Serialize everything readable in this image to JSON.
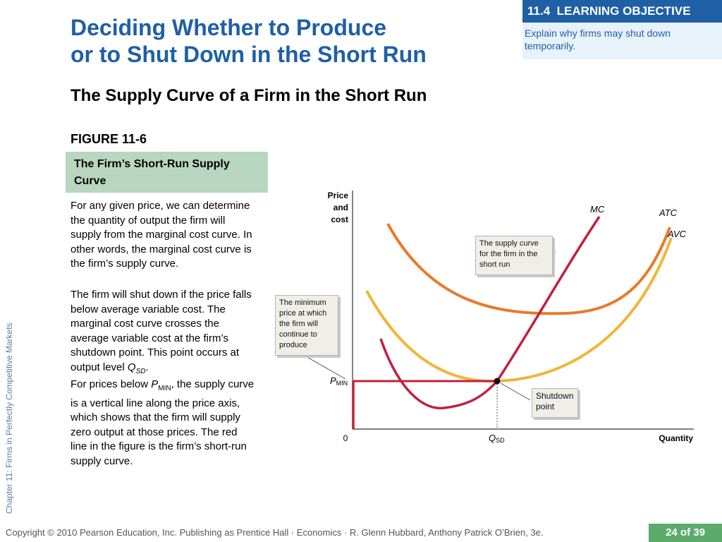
{
  "header": {
    "title_line1": "Deciding Whether to Produce",
    "title_line2": "or to Shut Down in the Short Run"
  },
  "learning_objective": {
    "number": "11.4",
    "heading": "LEARNING OBJECTIVE",
    "text": "Explain why firms may shut down temporarily."
  },
  "subtitle": "The Supply Curve of a Firm in the Short Run",
  "figure": {
    "label": "FIGURE 11-6",
    "title": "The Firm’s Short-Run Supply Curve"
  },
  "body": {
    "p1": "For any given price, we can determine the quantity of output the firm will supply from the marginal cost curve. In other words, the marginal cost curve is the firm’s supply curve.",
    "p2_text": "The firm will shut down if the price falls below average variable cost. The marginal cost curve crosses the average variable cost at the firm’s shutdown point. This point occurs at output level ",
    "p2_q": "Q",
    "p2_sub": "SD",
    "p2_end": ".",
    "p3_start": "For prices below ",
    "p3_p": "P",
    "p3_sub": "MIN",
    "p3_rest": ", the supply curve is a vertical line along the price axis, which shows that the firm will supply zero output at those prices. The red line in the figure is the firm’s short-run supply curve."
  },
  "chart": {
    "y_axis_label_1": "Price",
    "y_axis_label_2": "and",
    "y_axis_label_3": "cost",
    "x_axis_label": "Quantity",
    "origin_label": "0",
    "pmin_label_main": "P",
    "pmin_label_sub": "MIN",
    "qsd_label_main": "Q",
    "qsd_label_sub": "SD",
    "mc_label": "MC",
    "atc_label": "ATC",
    "avc_label": "AVC",
    "note_supply": "The supply curve for the firm in the short run",
    "note_minimum": "The minimum price at which the firm will continue to produce",
    "note_shutdown": "Shutdown point",
    "colors": {
      "mc": "#c2203e",
      "atc": "#e97a2a",
      "avc": "#f2b53a",
      "supply": "#c2203e"
    }
  },
  "sidebar": "Chapter 11:  Firms in Perfectly Competitive Markets",
  "footer": {
    "copyright": "Copyright © 2010 Pearson Education, Inc. Publishing as Prentice Hall · Economics · R. Glenn Hubbard, Anthony Patrick O’Brien, 3e.",
    "page": "24 of 39"
  }
}
